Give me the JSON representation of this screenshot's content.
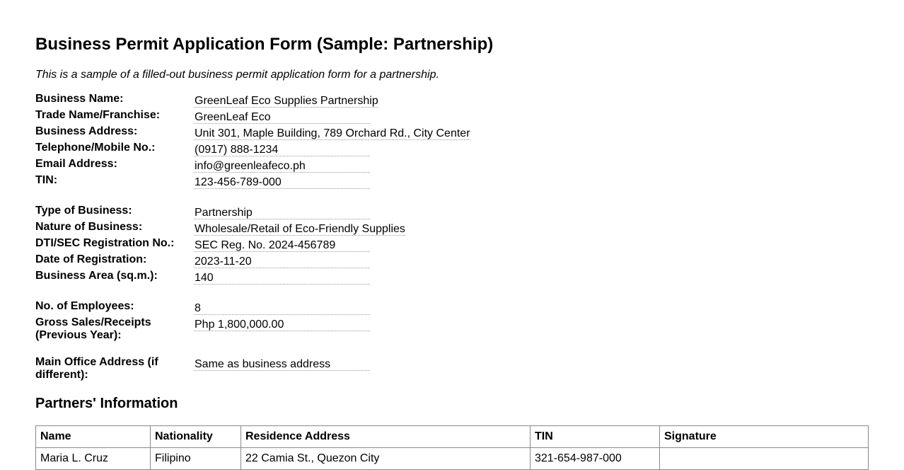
{
  "title": "Business Permit Application Form (Sample: Partnership)",
  "intro": "This is a sample of a filled-out business permit application form for a partnership.",
  "groups": [
    [
      {
        "label": "Business Name:",
        "value": "GreenLeaf Eco Supplies Partnership"
      },
      {
        "label": "Trade Name/Franchise:",
        "value": "GreenLeaf Eco"
      },
      {
        "label": "Business Address:",
        "value": "Unit 301, Maple Building, 789 Orchard Rd., City Center"
      },
      {
        "label": "Telephone/Mobile No.:",
        "value": "(0917) 888-1234"
      },
      {
        "label": "Email Address:",
        "value": "info@greenleafeco.ph"
      },
      {
        "label": "TIN:",
        "value": "123-456-789-000"
      }
    ],
    [
      {
        "label": "Type of Business:",
        "value": "Partnership"
      },
      {
        "label": "Nature of Business:",
        "value": "Wholesale/Retail of Eco-Friendly Supplies"
      },
      {
        "label": "DTI/SEC Registration No.:",
        "value": "SEC Reg. No. 2024-456789"
      },
      {
        "label": "Date of Registration:",
        "value": "2023-11-20"
      },
      {
        "label": "Business Area (sq.m.):",
        "value": "140"
      }
    ],
    [
      {
        "label": "No. of Employees:",
        "value": "8"
      },
      {
        "label": "Gross Sales/Receipts (Previous Year):",
        "value": "Php 1,800,000.00"
      }
    ],
    [
      {
        "label": "Main Office Address (if different):",
        "value": "Same as business address"
      }
    ]
  ],
  "partners": {
    "heading": "Partners' Information",
    "columns": [
      "Name",
      "Nationality",
      "Residence Address",
      "TIN",
      "Signature"
    ],
    "rows": [
      [
        "Maria L. Cruz",
        "Filipino",
        "22 Camia St., Quezon City",
        "321-654-987-000",
        ""
      ]
    ]
  }
}
